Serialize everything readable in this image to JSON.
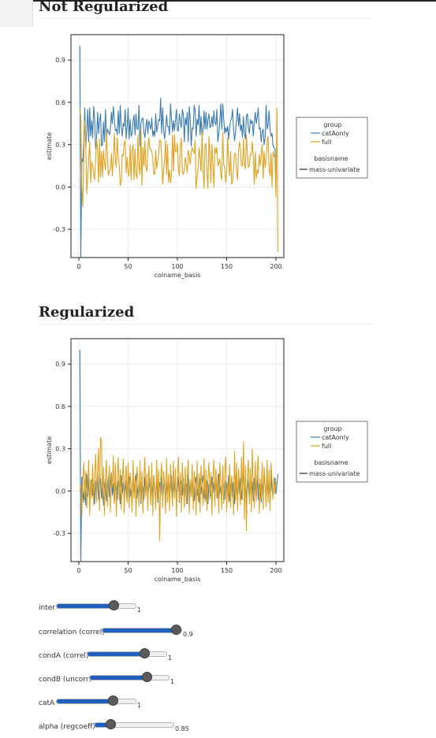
{
  "sections": [
    {
      "heading": "Not Regularized"
    },
    {
      "heading": "Regularized"
    }
  ],
  "colors": {
    "catAonly": "#3a7bb0",
    "full": "#e0a21f",
    "grid": "#ebebeb",
    "axis": "#222222"
  },
  "chart_data": [
    {
      "type": "line",
      "xlabel": "colname_basis",
      "ylabel": "estimate",
      "xlim": [
        -8,
        208
      ],
      "ylim": [
        -0.5,
        1.08
      ],
      "xticks": [
        0,
        50,
        100,
        150,
        200
      ],
      "yticks": [
        0.9,
        0.6,
        0.3,
        0.0,
        -0.3
      ],
      "yticklabels": [
        "0.9",
        "0.6",
        "0.3",
        "0.0",
        "-0.3"
      ],
      "grid": true,
      "legend": {
        "position": "right",
        "group_title": "group",
        "basis_title": "basisname",
        "basis_entry": "mass-univariate"
      },
      "series": [
        {
          "name": "catAonly",
          "x_start": 1,
          "values": [
            1.0,
            -0.5,
            0.2,
            0.18,
            0.31,
            0.56,
            0.29,
            0.38,
            0.55,
            0.32,
            0.56,
            0.36,
            0.47,
            0.35,
            0.57,
            0.49,
            0.27,
            0.34,
            0.53,
            0.38,
            0.47,
            0.52,
            0.29,
            0.3,
            0.46,
            0.32,
            0.55,
            0.35,
            0.41,
            0.39,
            0.37,
            0.41,
            0.53,
            0.45,
            0.57,
            0.48,
            0.4,
            0.41,
            0.37,
            0.54,
            0.38,
            0.58,
            0.43,
            0.36,
            0.45,
            0.43,
            0.55,
            0.34,
            0.43,
            0.56,
            0.34,
            0.48,
            0.36,
            0.38,
            0.47,
            0.51,
            0.37,
            0.52,
            0.41,
            0.41,
            0.58,
            0.29,
            0.45,
            0.48,
            0.49,
            0.39,
            0.35,
            0.43,
            0.48,
            0.38,
            0.47,
            0.44,
            0.41,
            0.49,
            0.36,
            0.4,
            0.36,
            0.52,
            0.39,
            0.43,
            0.48,
            0.47,
            0.63,
            0.38,
            0.56,
            0.41,
            0.34,
            0.41,
            0.51,
            0.43,
            0.43,
            0.37,
            0.59,
            0.49,
            0.39,
            0.47,
            0.4,
            0.47,
            0.55,
            0.4,
            0.4,
            0.52,
            0.46,
            0.42,
            0.55,
            0.52,
            0.32,
            0.49,
            0.44,
            0.53,
            0.32,
            0.57,
            0.48,
            0.29,
            0.42,
            0.41,
            0.58,
            0.54,
            0.36,
            0.48,
            0.44,
            0.58,
            0.37,
            0.5,
            0.35,
            0.41,
            0.54,
            0.41,
            0.53,
            0.41,
            0.48,
            0.52,
            0.42,
            0.43,
            0.5,
            0.43,
            0.54,
            0.46,
            0.44,
            0.55,
            0.32,
            0.38,
            0.46,
            0.59,
            0.41,
            0.59,
            0.48,
            0.38,
            0.42,
            0.39,
            0.43,
            0.34,
            0.42,
            0.47,
            0.49,
            0.55,
            0.4,
            0.33,
            0.39,
            0.48,
            0.56,
            0.43,
            0.52,
            0.4,
            0.44,
            0.35,
            0.5,
            0.38,
            0.34,
            0.5,
            0.52,
            0.42,
            0.38,
            0.48,
            0.45,
            0.47,
            0.36,
            0.46,
            0.53,
            0.45,
            0.5,
            0.56,
            0.41,
            0.42,
            0.32,
            0.39,
            0.41,
            0.3,
            0.35,
            0.58,
            0.41,
            0.44,
            0.54,
            0.41,
            0.36,
            0.38,
            0.29,
            0.28,
            0.27,
            0.0
          ]
        },
        {
          "name": "full",
          "x_start": 1,
          "values": [
            0.55,
            0.5,
            0.0,
            -0.14,
            0.21,
            0.47,
            0.33,
            -0.05,
            0.08,
            0.2,
            0.32,
            0.03,
            0.18,
            0.15,
            0.09,
            0.05,
            0.19,
            0.34,
            0.27,
            0.03,
            0.34,
            0.07,
            0.25,
            0.07,
            0.26,
            0.17,
            0.12,
            0.4,
            0.21,
            0.08,
            0.12,
            0.12,
            0.24,
            0.08,
            0.2,
            0.38,
            0.19,
            0.14,
            0.35,
            0.2,
            0.16,
            0.01,
            0.05,
            0.23,
            0.22,
            0.31,
            0.33,
            0.1,
            0.21,
            0.09,
            0.08,
            0.3,
            0.05,
            0.26,
            0.3,
            0.05,
            0.27,
            0.09,
            0.06,
            0.37,
            0.15,
            0.09,
            0.41,
            0.01,
            0.28,
            0.15,
            0.33,
            0.14,
            0.11,
            0.27,
            0.35,
            0.27,
            0.27,
            0.25,
            0.2,
            0.09,
            0.09,
            0.26,
            0.13,
            0.18,
            0.23,
            0.33,
            0.33,
            0.21,
            0.02,
            0.11,
            0.2,
            0.33,
            0.09,
            0.3,
            0.03,
            0.12,
            0.03,
            0.09,
            0.37,
            0.11,
            0.37,
            0.25,
            0.25,
            0.31,
            0.13,
            0.08,
            0.29,
            0.35,
            0.1,
            0.09,
            0.12,
            0.21,
            0.16,
            0.1,
            0.26,
            0.23,
            0.16,
            0.25,
            0.28,
            0.25,
            0.24,
            0.33,
            -0.01,
            0.07,
            0.14,
            0.28,
            0.2,
            0.11,
            0.39,
            0.12,
            -0.01,
            0.29,
            0.31,
            0.1,
            -0.01,
            0.36,
            0.24,
            0.03,
            0.3,
            0.17,
            0.0,
            0.28,
            0.24,
            0.28,
            0.15,
            0.17,
            0.2,
            0.09,
            0.05,
            0.39,
            0.16,
            0.14,
            0.03,
            0.1,
            0.35,
            0.18,
            0.08,
            0.25,
            0.02,
            0.04,
            0.14,
            0.24,
            0.23,
            0.13,
            0.05,
            0.25,
            0.32,
            0.27,
            0.15,
            0.15,
            0.34,
            0.15,
            0.13,
            0.37,
            0.24,
            0.14,
            0.15,
            0.23,
            0.23,
            0.32,
            0.21,
            0.02,
            0.25,
            0.06,
            0.12,
            0.1,
            0.23,
            0.15,
            0.23,
            0.3,
            0.06,
            0.25,
            0.14,
            0.19,
            0.33,
            0.36,
            0.12,
            0.08,
            0.24,
            0.0,
            0.25,
            0.22,
            0.21,
            -0.07,
            0.56,
            -0.46
          ]
        }
      ]
    },
    {
      "type": "line",
      "xlabel": "colname_basis",
      "ylabel": "estimate",
      "xlim": [
        -8,
        208
      ],
      "ylim": [
        -0.5,
        1.08
      ],
      "xticks": [
        0,
        50,
        100,
        150,
        200
      ],
      "yticks": [
        0.9,
        0.6,
        0.3,
        0.0,
        -0.3
      ],
      "yticklabels": [
        "0.9",
        "0.6",
        "0.3",
        "0.0",
        "-0.3"
      ],
      "grid": true,
      "legend": {
        "position": "right",
        "group_title": "group",
        "basis_title": "basisname",
        "basis_entry": "mass-univariate"
      },
      "series": [
        {
          "name": "catAonly",
          "x_start": 1,
          "values": [
            1.0,
            -0.5,
            0.1,
            0.0,
            -0.08,
            0.07,
            -0.1,
            0.12,
            -0.04,
            0.09,
            -0.07,
            0.02,
            0.08,
            -0.03,
            0.05,
            -0.09,
            0.07,
            -0.02,
            0.11,
            -0.06,
            0.03,
            0.09,
            -0.05,
            0.06,
            -0.1,
            0.04,
            0.08,
            -0.07,
            0.02,
            0.1,
            -0.04,
            0.07,
            0.13,
            -0.03,
            0.05,
            -0.08,
            0.09,
            0.01,
            -0.06,
            0.07,
            0.03,
            -0.09,
            0.11,
            -0.02,
            0.06,
            -0.05,
            0.08,
            0.0,
            -0.07,
            0.05,
            0.1,
            -0.04,
            0.03,
            -0.08,
            0.09,
            -0.02,
            0.06,
            0.12,
            -0.05,
            0.04,
            -0.03,
            0.08,
            -0.09,
            0.05,
            0.02,
            -0.06,
            0.1,
            -0.01,
            0.07,
            -0.04,
            0.03,
            0.09,
            -0.07,
            0.05,
            -0.02,
            0.11,
            0.0,
            -0.05,
            0.08,
            -0.08,
            0.04,
            0.06,
            -0.03,
            0.1,
            -0.06,
            0.02,
            0.07,
            -0.09,
            0.05,
            -0.01,
            0.09,
            -0.04,
            0.03,
            0.11,
            -0.07,
            0.06,
            -0.02,
            0.08,
            -0.05,
            0.01,
            0.1,
            -0.08,
            0.04,
            0.07,
            -0.03,
            0.09,
            -0.06,
            0.02,
            0.05,
            -0.09,
            0.12,
            -0.01,
            0.06,
            -0.04,
            0.08,
            0.0,
            -0.07,
            0.05,
            0.1,
            -0.03,
            0.04,
            -0.08,
            0.09,
            -0.02,
            0.06,
            0.11,
            -0.05,
            0.03,
            -0.06,
            0.07,
            -0.09,
            0.05,
            0.02,
            -0.04,
            0.1,
            -0.01,
            0.06,
            -0.07,
            0.08,
            0.03,
            -0.05,
            0.12,
            -0.02,
            0.04,
            -0.08,
            0.09,
            0.0,
            -0.06,
            0.07,
            0.05,
            -0.03,
            0.11,
            -0.07,
            0.02,
            0.08,
            -0.04,
            0.06,
            -0.09,
            0.1,
            0.01,
            -0.05,
            0.07,
            -0.02,
            0.09,
            -0.06,
            0.04,
            0.13,
            -0.03,
            0.05,
            -0.08,
            0.08,
            0.02,
            -0.05,
            0.1,
            -0.01,
            0.06,
            -0.07,
            0.09,
            0.03,
            -0.04,
            0.11,
            -0.06,
            0.05,
            0.0,
            -0.08,
            0.07,
            -0.02,
            0.1,
            0.04,
            -0.05,
            0.08,
            -0.03,
            0.06,
            -0.09,
            0.12,
            0.01,
            -0.04,
            0.07,
            0.09,
            -0.02,
            0.05,
            0.12
          ]
        },
        {
          "name": "full",
          "x_start": 1,
          "values": [
            0.0,
            0.05,
            -0.18,
            0.09,
            0.2,
            -0.06,
            0.14,
            -0.12,
            0.05,
            0.22,
            -0.17,
            0.08,
            -0.05,
            0.19,
            -0.1,
            0.12,
            0.26,
            -0.08,
            0.16,
            0.3,
            -0.14,
            0.38,
            0.36,
            -0.06,
            0.17,
            -0.17,
            0.1,
            0.22,
            -0.11,
            0.06,
            0.18,
            -0.15,
            0.12,
            0.03,
            0.25,
            -0.09,
            0.2,
            -0.18,
            0.1,
            0.24,
            -0.06,
            0.15,
            -0.13,
            0.07,
            0.23,
            -0.16,
            0.09,
            0.18,
            -0.08,
            0.2,
            -0.12,
            0.13,
            0.04,
            -0.15,
            0.22,
            -0.05,
            0.1,
            -0.18,
            0.17,
            0.08,
            -0.11,
            0.21,
            -0.07,
            0.14,
            -0.16,
            0.09,
            0.24,
            -0.04,
            0.12,
            -0.14,
            0.18,
            0.05,
            -0.1,
            0.2,
            -0.17,
            0.11,
            0.03,
            -0.13,
            0.22,
            -0.06,
            0.15,
            -0.35,
            0.1,
            0.2,
            -0.12,
            0.14,
            0.05,
            -0.16,
            0.23,
            -0.08,
            0.12,
            -0.14,
            0.19,
            0.02,
            -0.11,
            0.21,
            -0.05,
            0.16,
            -0.18,
            0.09,
            0.24,
            -0.07,
            0.13,
            -0.15,
            0.2,
            0.04,
            -0.12,
            0.17,
            -0.09,
            0.11,
            0.22,
            -0.16,
            0.08,
            -0.04,
            0.19,
            -0.13,
            0.14,
            0.06,
            -0.17,
            0.21,
            -0.07,
            0.12,
            -0.15,
            0.18,
            0.03,
            -0.1,
            0.23,
            -0.08,
            0.15,
            -0.14,
            0.1,
            0.2,
            -0.06,
            0.13,
            -0.17,
            0.09,
            0.22,
            -0.11,
            0.16,
            -0.05,
            0.12,
            -0.16,
            0.2,
            0.07,
            -0.13,
            0.18,
            -0.09,
            0.14,
            0.24,
            -0.15,
            0.06,
            -0.08,
            0.19,
            -0.12,
            0.11,
            0.05,
            -0.17,
            0.28,
            -0.07,
            0.2,
            -0.14,
            0.16,
            0.03,
            -0.1,
            0.24,
            -0.06,
            0.35,
            -0.2,
            0.18,
            -0.28,
            0.12,
            0.22,
            -0.09,
            0.16,
            -0.15,
            0.3,
            0.05,
            -0.12,
            0.21,
            -0.07,
            0.14,
            0.25,
            -0.16,
            0.09,
            -0.05,
            0.2,
            -0.13,
            0.17,
            0.04,
            -0.11,
            0.22,
            -0.08,
            0.15,
            -0.14,
            0.2,
            0.08,
            -0.06,
            0.1,
            -0.02,
            0.06,
            0.05
          ]
        }
      ]
    }
  ],
  "sliders": [
    {
      "label": "inter",
      "value": "1",
      "fraction": 0.72
    },
    {
      "label": "correlation (correl)",
      "value": "0.9",
      "fraction": 0.93
    },
    {
      "label": "condA (correl)",
      "value": "1",
      "fraction": 0.72
    },
    {
      "label": "condB (uncorr)",
      "value": "1",
      "fraction": 0.72
    },
    {
      "label": "catA",
      "value": "1",
      "fraction": 0.71
    },
    {
      "label": "alpha (regcoeff)",
      "value": "0.85",
      "fraction": 0.2
    }
  ]
}
